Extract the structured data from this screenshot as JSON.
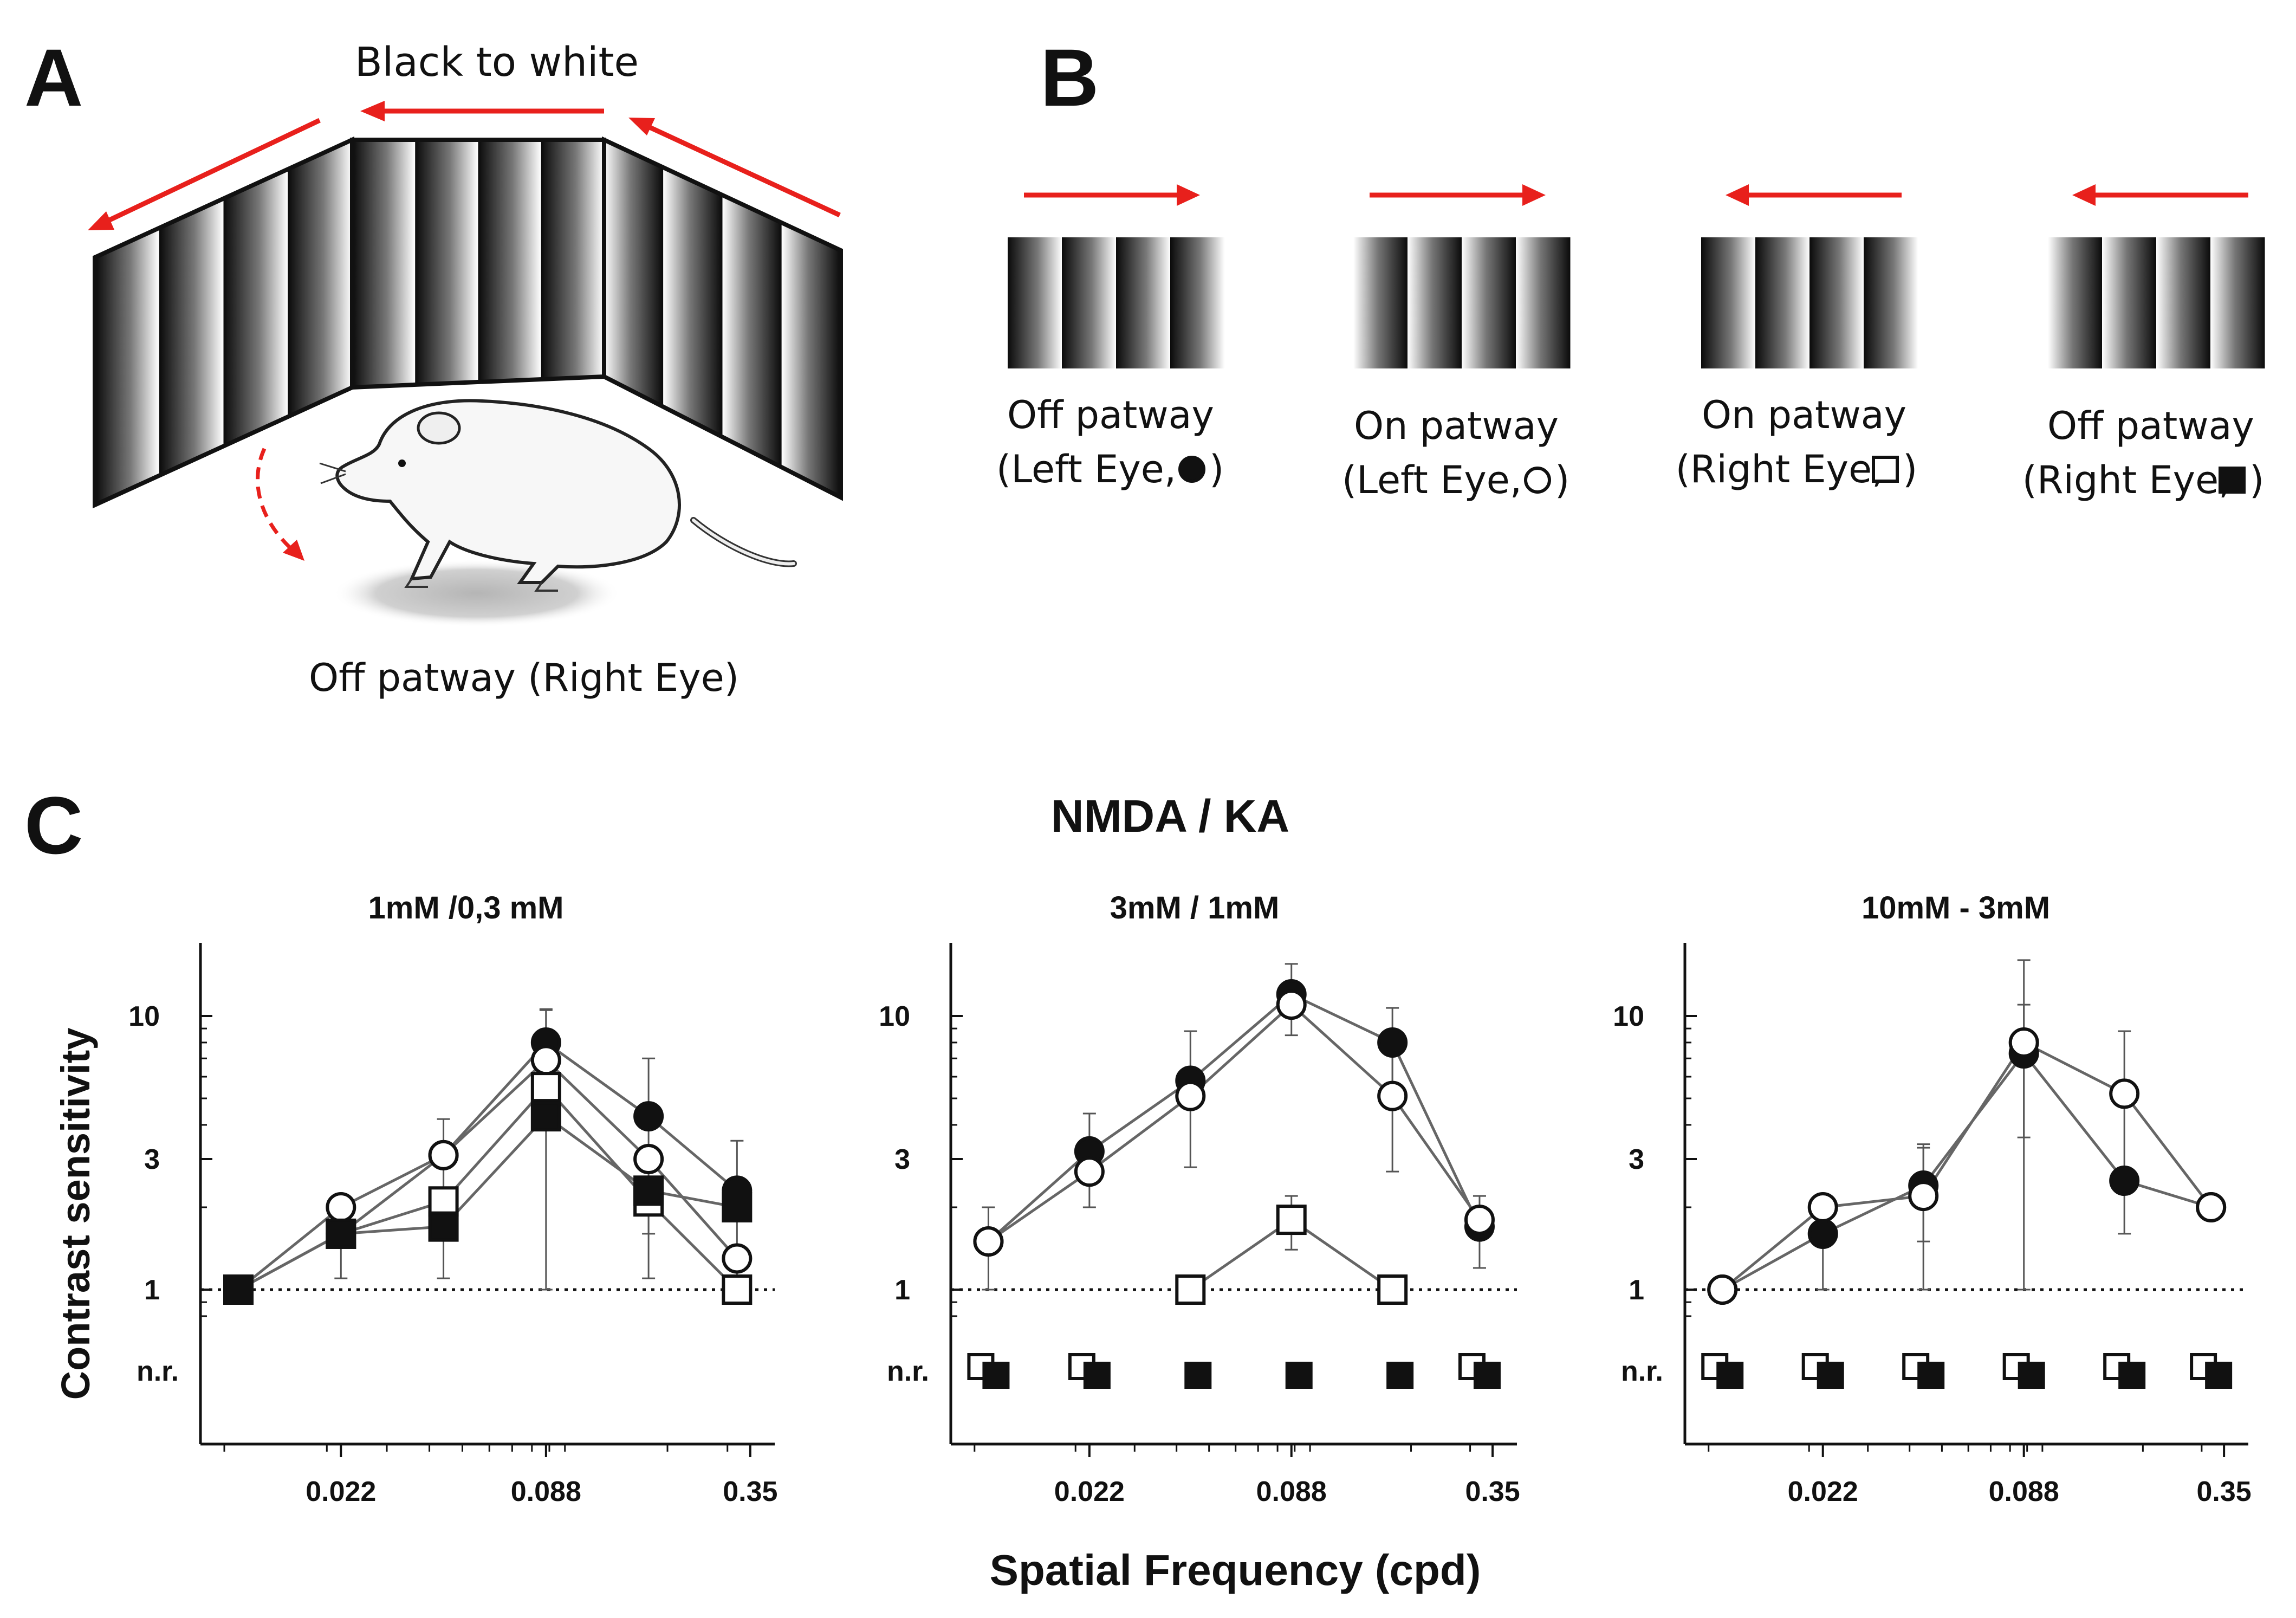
{
  "panels": {
    "a": {
      "letter": "A",
      "arrow_label": "Black to white",
      "caption": "Off patway (Right Eye)"
    },
    "b": {
      "letter": "B",
      "stimuli": [
        {
          "line1": "Off patway",
          "line2": "(Left Eye,",
          "symbol": "filled-circle",
          "direction": "right",
          "dark_side": "left"
        },
        {
          "line1": "On patway",
          "line2": "(Left Eye,",
          "symbol": "open-circle",
          "direction": "right",
          "dark_side": "right"
        },
        {
          "line1": "On patway",
          "line2": "(Right Eye,",
          "symbol": "open-square",
          "direction": "left",
          "dark_side": "left"
        },
        {
          "line1": "Off patway",
          "line2": "(Right Eye,",
          "symbol": "filled-square",
          "direction": "left",
          "dark_side": "right"
        }
      ],
      "close_paren": ")"
    },
    "c": {
      "letter": "C",
      "suptitle": "NMDA / KA",
      "xlabel": "Spatial Frequency (cpd)",
      "ylabel": "Contrast sensitivity"
    }
  },
  "colors": {
    "arrow": "#e8201c",
    "line": "#666666",
    "marker": "#111111"
  },
  "chart_data": [
    {
      "type": "line",
      "title": "1mM /0,3 mM",
      "xscale": "log",
      "yscale": "log",
      "xticks": [
        0.022,
        0.088,
        0.35
      ],
      "xtick_labels": [
        "0.022",
        "0.088",
        "0.35"
      ],
      "yticks": [
        1,
        3,
        10
      ],
      "ytick_labels": [
        "1",
        "3",
        "10"
      ],
      "nr_label": "n.r.",
      "baseline": 1,
      "series": [
        {
          "marker": "filled-circle",
          "points": [
            {
              "x": 0.011,
              "y": 1
            },
            {
              "x": 0.022,
              "y": 1.6
            },
            {
              "x": 0.044,
              "y": 3.1
            },
            {
              "x": 0.088,
              "y": 8.0,
              "err": 2.6
            },
            {
              "x": 0.176,
              "y": 4.3,
              "err": 2.7
            },
            {
              "x": 0.32,
              "y": 2.3,
              "err": 1.2
            }
          ]
        },
        {
          "marker": "open-circle",
          "points": [
            {
              "x": 0.011,
              "y": 1
            },
            {
              "x": 0.022,
              "y": 2.0
            },
            {
              "x": 0.044,
              "y": 3.1,
              "err": 1.1
            },
            {
              "x": 0.088,
              "y": 6.9
            },
            {
              "x": 0.176,
              "y": 3.0
            },
            {
              "x": 0.32,
              "y": 1.3
            }
          ]
        },
        {
          "marker": "open-square",
          "points": [
            {
              "x": 0.011,
              "y": 1
            },
            {
              "x": 0.022,
              "y": 1.6,
              "err": 0.5
            },
            {
              "x": 0.044,
              "y": 2.1,
              "err": 1.0
            },
            {
              "x": 0.088,
              "y": 5.5,
              "err": 5.0
            },
            {
              "x": 0.176,
              "y": 2.1,
              "err": 1.0
            },
            {
              "x": 0.32,
              "y": 1.0
            }
          ]
        },
        {
          "marker": "filled-square",
          "points": [
            {
              "x": 0.011,
              "y": 1
            },
            {
              "x": 0.022,
              "y": 1.6
            },
            {
              "x": 0.044,
              "y": 1.7
            },
            {
              "x": 0.088,
              "y": 4.3
            },
            {
              "x": 0.176,
              "y": 2.3
            },
            {
              "x": 0.32,
              "y": 2.0
            }
          ]
        }
      ],
      "nr_points": []
    },
    {
      "type": "line",
      "title": "3mM / 1mM",
      "xscale": "log",
      "yscale": "log",
      "xticks": [
        0.022,
        0.088,
        0.35
      ],
      "xtick_labels": [
        "0.022",
        "0.088",
        "0.35"
      ],
      "yticks": [
        1,
        3,
        10
      ],
      "ytick_labels": [
        "1",
        "3",
        "10"
      ],
      "nr_label": "n.r.",
      "baseline": 1,
      "series": [
        {
          "marker": "filled-circle",
          "points": [
            {
              "x": 0.011,
              "y": 1.5,
              "err": 0.5
            },
            {
              "x": 0.022,
              "y": 3.2,
              "err": 1.2
            },
            {
              "x": 0.044,
              "y": 5.8,
              "err": 3.0
            },
            {
              "x": 0.088,
              "y": 12.0,
              "err": 3.5
            },
            {
              "x": 0.176,
              "y": 8.0,
              "err": 2.7
            },
            {
              "x": 0.32,
              "y": 1.7,
              "err": 0.5
            }
          ]
        },
        {
          "marker": "open-circle",
          "points": [
            {
              "x": 0.011,
              "y": 1.5
            },
            {
              "x": 0.022,
              "y": 2.7
            },
            {
              "x": 0.044,
              "y": 5.1
            },
            {
              "x": 0.088,
              "y": 11.0
            },
            {
              "x": 0.176,
              "y": 5.1,
              "err": 2.4
            },
            {
              "x": 0.32,
              "y": 1.8
            }
          ]
        },
        {
          "marker": "open-square",
          "points": [
            {
              "x": 0.044,
              "y": 1.0
            },
            {
              "x": 0.088,
              "y": 1.8,
              "err": 0.4
            },
            {
              "x": 0.176,
              "y": 1.0
            }
          ]
        }
      ],
      "nr_points": [
        {
          "marker": "open-square",
          "x": [
            0.011,
            0.022,
            0.32
          ]
        },
        {
          "marker": "filled-square",
          "x": [
            0.011,
            0.022,
            0.044,
            0.088,
            0.176,
            0.32
          ]
        }
      ]
    },
    {
      "type": "line",
      "title": "10mM - 3mM",
      "xscale": "log",
      "yscale": "log",
      "xticks": [
        0.022,
        0.088,
        0.35
      ],
      "xtick_labels": [
        "0.022",
        "0.088",
        "0.35"
      ],
      "yticks": [
        1,
        3,
        10
      ],
      "ytick_labels": [
        "1",
        "3",
        "10"
      ],
      "nr_label": "n.r.",
      "baseline": 1,
      "series": [
        {
          "marker": "filled-circle",
          "points": [
            {
              "x": 0.011,
              "y": 1.0
            },
            {
              "x": 0.022,
              "y": 1.6,
              "err": 0.6
            },
            {
              "x": 0.044,
              "y": 2.4,
              "err": 0.9
            },
            {
              "x": 0.088,
              "y": 7.3,
              "err": 3.7
            },
            {
              "x": 0.176,
              "y": 2.5
            },
            {
              "x": 0.32,
              "y": 2.0
            }
          ]
        },
        {
          "marker": "open-circle",
          "points": [
            {
              "x": 0.011,
              "y": 1.0
            },
            {
              "x": 0.022,
              "y": 2.0
            },
            {
              "x": 0.044,
              "y": 2.2,
              "err": 1.2
            },
            {
              "x": 0.088,
              "y": 8.0,
              "err": 8.0
            },
            {
              "x": 0.176,
              "y": 5.2,
              "err": 3.6
            },
            {
              "x": 0.32,
              "y": 2.0
            }
          ]
        }
      ],
      "nr_points": [
        {
          "marker": "open-square",
          "x": [
            0.011,
            0.022,
            0.044,
            0.088,
            0.176,
            0.32
          ]
        },
        {
          "marker": "filled-square",
          "x": [
            0.011,
            0.022,
            0.044,
            0.088,
            0.176,
            0.32
          ]
        }
      ]
    }
  ]
}
